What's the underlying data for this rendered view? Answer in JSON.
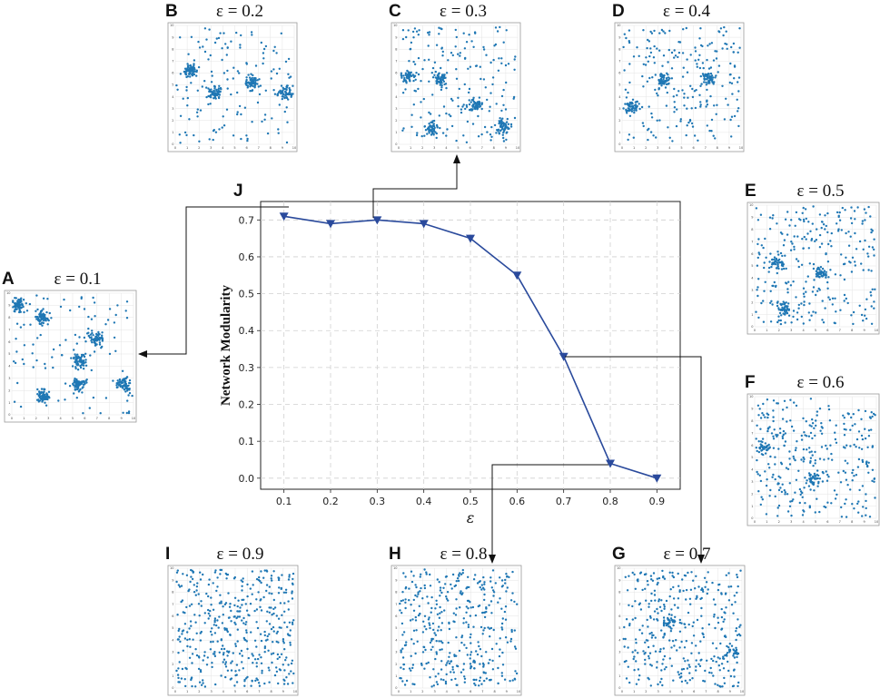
{
  "figure": {
    "main_panel_letter": "J",
    "colors": {
      "line": "#2a4a9c",
      "marker": "#2a4a9c",
      "dots": "#1f77b4",
      "grid": "#cfcfcf",
      "arrow": "#111111"
    }
  },
  "chart_data": {
    "type": "line",
    "title": "",
    "xlabel": "ε",
    "ylabel": "Network Modularity",
    "x": [
      0.1,
      0.2,
      0.3,
      0.4,
      0.5,
      0.6,
      0.7,
      0.8,
      0.9
    ],
    "series": [
      {
        "name": "Network Modularity",
        "values": [
          0.71,
          0.69,
          0.7,
          0.69,
          0.65,
          0.55,
          0.33,
          0.04,
          0.0
        ]
      }
    ],
    "xlim": [
      0.05,
      0.95
    ],
    "ylim": [
      -0.03,
      0.75
    ],
    "xticks": [
      "0.1",
      "0.2",
      "0.3",
      "0.4",
      "0.5",
      "0.6",
      "0.7",
      "0.8",
      "0.9"
    ],
    "yticks": [
      "0.0",
      "0.1",
      "0.2",
      "0.3",
      "0.4",
      "0.5",
      "0.6",
      "0.7"
    ],
    "grid": true,
    "marker": "triangle-down"
  },
  "scatter_panels": [
    {
      "letter": "A",
      "title": "ε = 0.1",
      "epsilon": 0.1
    },
    {
      "letter": "B",
      "title": "ε = 0.2",
      "epsilon": 0.2
    },
    {
      "letter": "C",
      "title": "ε = 0.3",
      "epsilon": 0.3
    },
    {
      "letter": "D",
      "title": "ε = 0.4",
      "epsilon": 0.4
    },
    {
      "letter": "E",
      "title": "ε = 0.5",
      "epsilon": 0.5
    },
    {
      "letter": "F",
      "title": "ε = 0.6",
      "epsilon": 0.6
    },
    {
      "letter": "G",
      "title": "ε = 0.7",
      "epsilon": 0.7
    },
    {
      "letter": "H",
      "title": "ε = 0.8",
      "epsilon": 0.8
    },
    {
      "letter": "I",
      "title": "ε = 0.9",
      "epsilon": 0.9
    }
  ],
  "mini_axis_ticks": [
    "0",
    "1",
    "2",
    "3",
    "4",
    "5",
    "6",
    "7",
    "8",
    "9",
    "10"
  ]
}
